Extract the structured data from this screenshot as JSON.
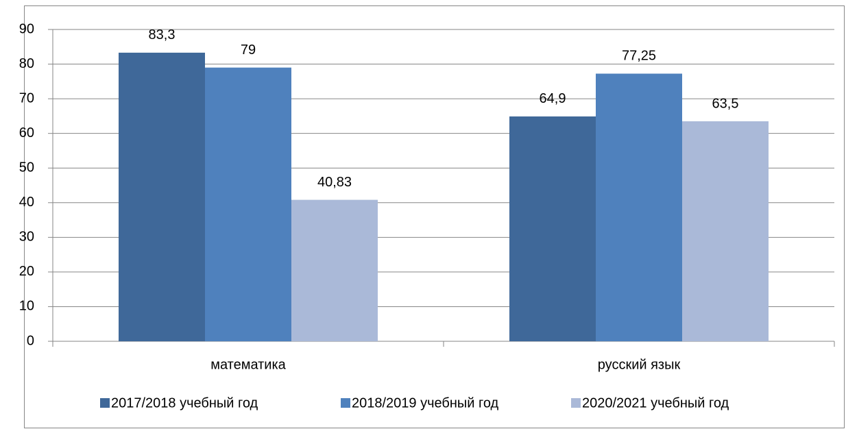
{
  "chart_data": {
    "type": "bar",
    "categories": [
      "математика",
      "русский язык"
    ],
    "series": [
      {
        "name": "2017/2018 учебный год",
        "color": "#3f6899",
        "values": [
          83.3,
          64.9
        ],
        "value_labels": [
          "83,3",
          "64,9"
        ]
      },
      {
        "name": "2018/2019 учебный год",
        "color": "#4f81bd",
        "values": [
          79,
          77.25
        ],
        "value_labels": [
          "79",
          "77,25"
        ]
      },
      {
        "name": "2020/2021 учебный год",
        "color": "#aab9d8",
        "values": [
          40.83,
          63.5
        ],
        "value_labels": [
          "40,83",
          "63,5"
        ]
      }
    ],
    "ylim": [
      0,
      90
    ],
    "yticks": [
      0,
      10,
      20,
      30,
      40,
      50,
      60,
      70,
      80,
      90
    ],
    "grid": true,
    "legend": "bottom"
  }
}
